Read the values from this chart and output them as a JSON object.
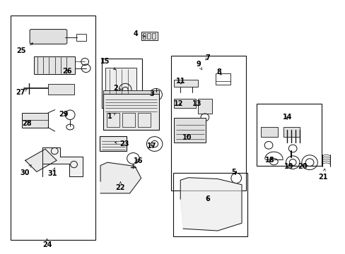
{
  "bg_color": "#ffffff",
  "line_color": "#111111",
  "text_color": "#000000",
  "font_size": 7
}
